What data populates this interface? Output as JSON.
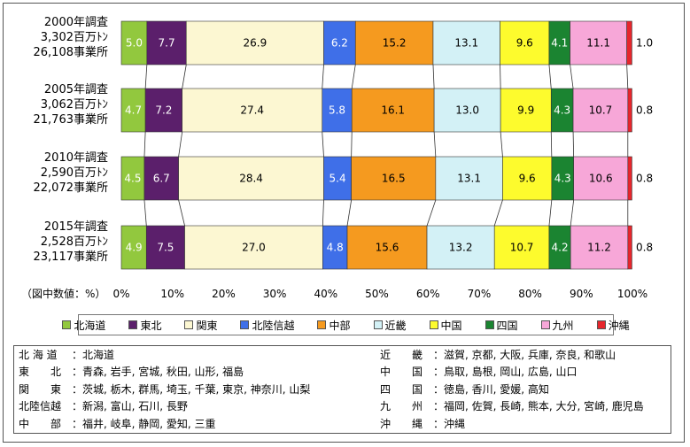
{
  "chart_data": {
    "type": "bar",
    "stacked": true,
    "orientation": "horizontal",
    "rows": [
      {
        "year": "2000年調査",
        "amount": "3,302百万ﾄﾝ",
        "sites": "26,108事業所",
        "values": [
          5.0,
          7.7,
          26.9,
          6.2,
          15.2,
          13.1,
          9.6,
          4.1,
          11.1,
          1.0
        ],
        "labels": [
          "5.0",
          "7.7",
          "26.9",
          "6.2",
          "15.2",
          "13.1",
          "9.6",
          "4.1",
          "11.1",
          "1.0"
        ]
      },
      {
        "year": "2005年調査",
        "amount": "3,062百万ﾄﾝ",
        "sites": "21,763事業所",
        "values": [
          4.7,
          7.2,
          27.4,
          5.8,
          16.1,
          13.0,
          9.9,
          4.3,
          10.7,
          0.8
        ],
        "labels": [
          "4.7",
          "7.2",
          "27.4",
          "5.8",
          "16.1",
          "13.0",
          "9.9",
          "4.3",
          "10.7",
          "0.8"
        ]
      },
      {
        "year": "2010年調査",
        "amount": "2,590百万ﾄﾝ",
        "sites": "22,072事業所",
        "values": [
          4.5,
          6.7,
          28.4,
          5.4,
          16.5,
          13.1,
          9.6,
          4.3,
          10.6,
          0.8
        ],
        "labels": [
          "4.5",
          "6.7",
          "28.4",
          "5.4",
          "16.5",
          "13.1",
          "9.6",
          "4.3",
          "10.6",
          "0.8"
        ]
      },
      {
        "year": "2015年調査",
        "amount": "2,528百万ﾄﾝ",
        "sites": "23,117事業所",
        "values": [
          4.9,
          7.5,
          27.0,
          4.8,
          15.6,
          13.2,
          10.7,
          4.2,
          11.2,
          0.8
        ],
        "labels": [
          "4.9",
          "7.5",
          "27.0",
          "4.8",
          "15.6",
          "13.2",
          "10.7",
          "4.2",
          "11.2",
          "0.8"
        ]
      }
    ],
    "series": [
      {
        "name": "北海道",
        "color": "#92c83e",
        "label_color": "#ffffff"
      },
      {
        "name": "東北",
        "color": "#5b1f6b",
        "label_color": "#ffffff"
      },
      {
        "name": "関東",
        "color": "#fcf7d2",
        "label_color": "#000000"
      },
      {
        "name": "北陸信越",
        "color": "#3f6fe8",
        "label_color": "#ffffff"
      },
      {
        "name": "中部",
        "color": "#f59a1f",
        "label_color": "#000000"
      },
      {
        "name": "近畿",
        "color": "#d3f1f6",
        "label_color": "#000000"
      },
      {
        "name": "中国",
        "color": "#fdfb2d",
        "label_color": "#000000"
      },
      {
        "name": "四国",
        "color": "#1b8431",
        "label_color": "#ffffff"
      },
      {
        "name": "九州",
        "color": "#f7a7d8",
        "label_color": "#000000"
      },
      {
        "name": "沖縄",
        "color": "#e6262c",
        "label_color": "#000000"
      }
    ],
    "xlim": [
      0,
      100
    ],
    "x_ticks": [
      "0%",
      "10%",
      "20%",
      "30%",
      "40%",
      "50%",
      "60%",
      "70%",
      "80%",
      "90%",
      "100%"
    ],
    "axis_note": "（図中数値：%）",
    "legend": [
      {
        "marker": "■",
        "name": "北海道"
      },
      {
        "marker": "■",
        "name": "東北"
      },
      {
        "marker": "□",
        "name": "関東"
      },
      {
        "marker": "■",
        "name": "北陸信越"
      },
      {
        "marker": "■",
        "name": "中部"
      },
      {
        "marker": "□",
        "name": "近畿"
      },
      {
        "marker": "■",
        "name": "中国"
      },
      {
        "marker": "■",
        "name": "四国"
      },
      {
        "marker": "■",
        "name": "九州"
      },
      {
        "marker": "■",
        "name": "沖縄"
      }
    ],
    "legend_position": "bottom",
    "grid": false
  },
  "regions": {
    "left": [
      {
        "name": "北 海 道",
        "prefectures": "：北海道"
      },
      {
        "name": "東　　北",
        "prefectures": "：青森, 岩手, 宮城, 秋田, 山形, 福島"
      },
      {
        "name": "関　　東",
        "prefectures": "：茨城, 栃木, 群馬, 埼玉, 千葉, 東京, 神奈川, 山梨"
      },
      {
        "name": "北陸信越",
        "prefectures": "：新潟, 富山, 石川, 長野"
      },
      {
        "name": "中　　部",
        "prefectures": "：福井, 岐阜, 静岡, 愛知, 三重"
      }
    ],
    "right": [
      {
        "name": "近　　畿",
        "prefectures": "：滋賀, 京都, 大阪, 兵庫, 奈良, 和歌山"
      },
      {
        "name": "中　　国",
        "prefectures": "：鳥取, 島根, 岡山, 広島, 山口"
      },
      {
        "name": "四　　国",
        "prefectures": "：徳島, 香川, 愛媛, 高知"
      },
      {
        "name": "九　　州",
        "prefectures": "：福岡, 佐賀, 長崎, 熊本, 大分, 宮崎, 鹿児島"
      },
      {
        "name": "沖　　縄",
        "prefectures": "：沖縄"
      }
    ]
  }
}
